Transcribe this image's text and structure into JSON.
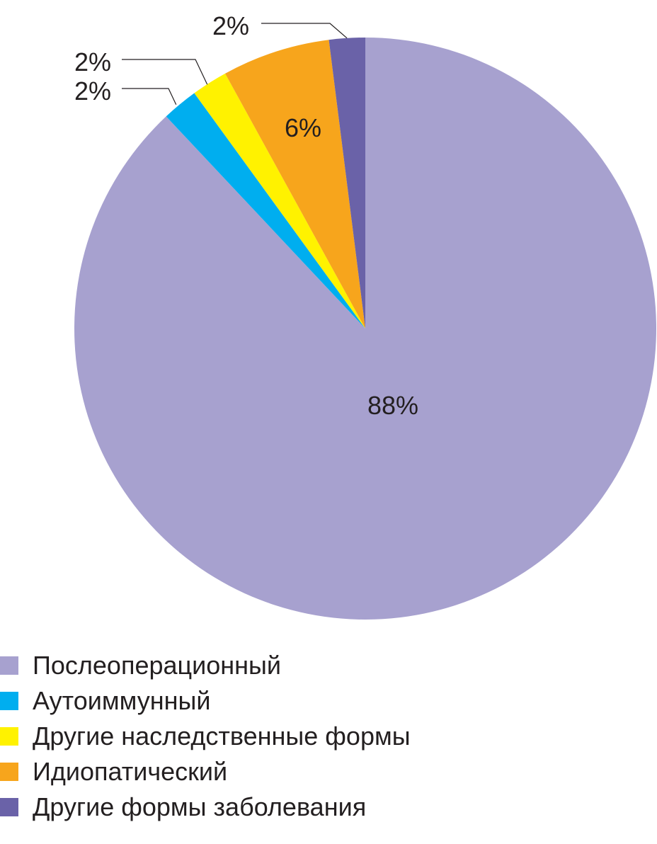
{
  "chart_data": {
    "type": "pie",
    "start_angle": "12 o'clock, clockwise",
    "slices": [
      {
        "name": "Послеоперационный",
        "value": 88,
        "label": "88%",
        "color": "#a7a1cf"
      },
      {
        "name": "Аутоиммунный",
        "value": 2,
        "label": "2%",
        "color": "#00aeef"
      },
      {
        "name": "Другие наследственные формы",
        "value": 2,
        "label": "2%",
        "color": "#fff200"
      },
      {
        "name": "Идиопатический",
        "value": 6,
        "label": "6%",
        "color": "#f7a51c"
      },
      {
        "name": "Другие формы заболевания",
        "value": 2,
        "label": "2%",
        "color": "#6a62a8"
      }
    ],
    "legend_position": "bottom-left"
  }
}
